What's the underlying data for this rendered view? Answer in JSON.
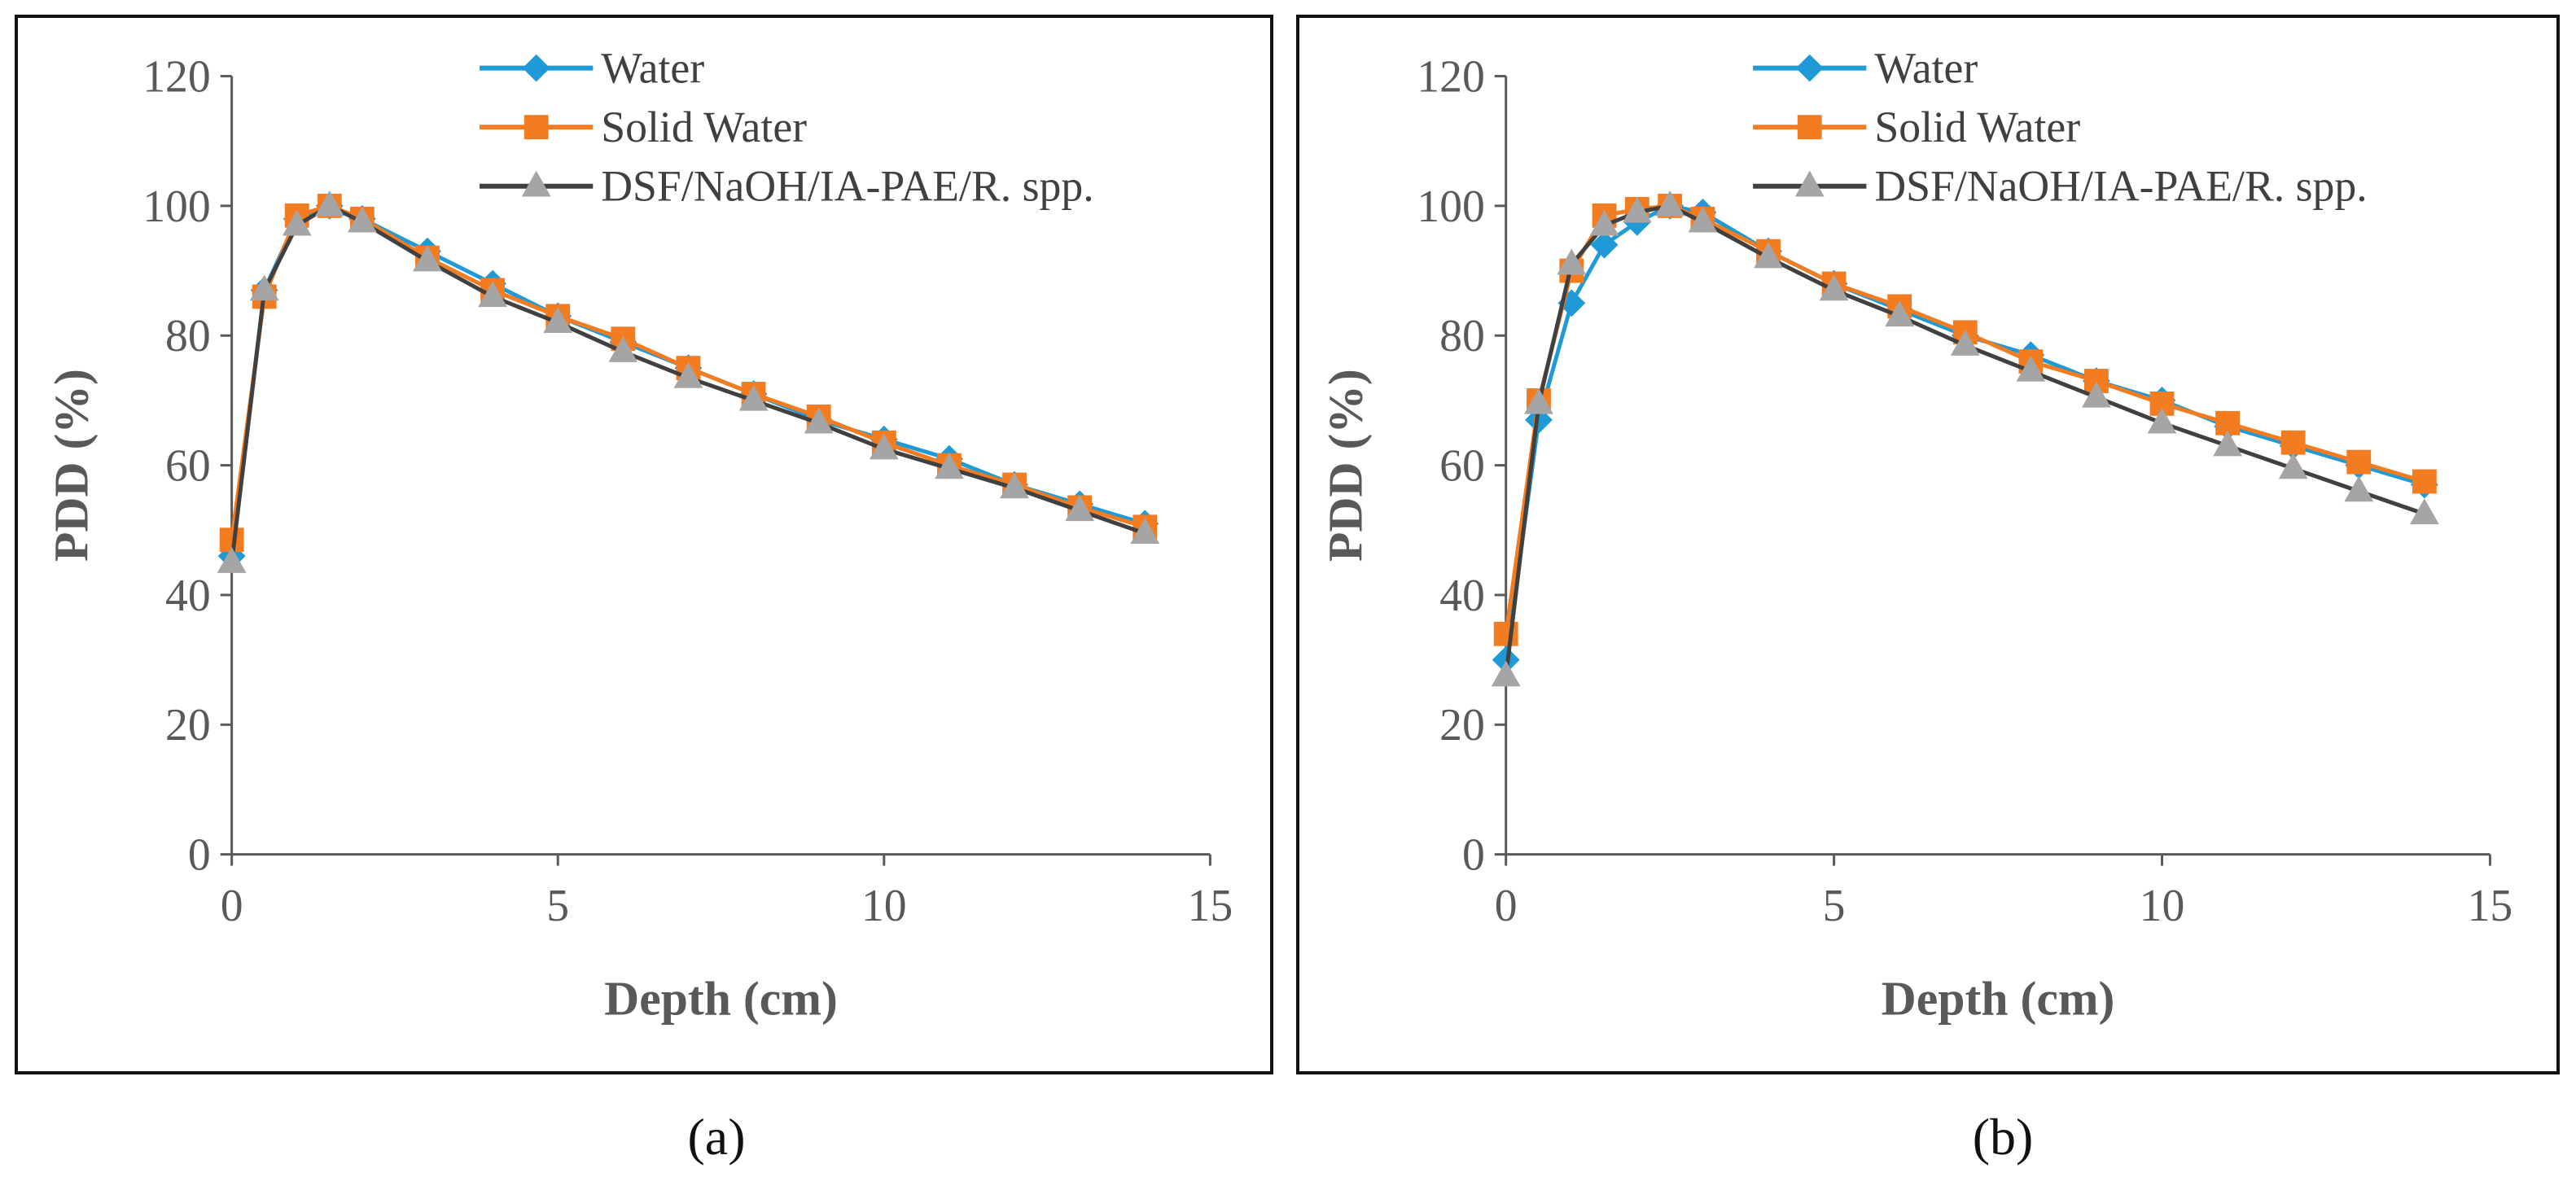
{
  "panel_labels": [
    "(a)",
    "(b)"
  ],
  "colors": {
    "water": "#1f9ad6",
    "solid_water": "#f47c20",
    "dsf": "#404040",
    "dsf_marker": "#a5a5a5",
    "axis": "#595959"
  },
  "chart_data": [
    {
      "type": "line",
      "panel": "(a)",
      "xlabel": "Depth (cm)",
      "ylabel": "PDD (%)",
      "xlim": [
        0,
        15
      ],
      "ylim": [
        0,
        120
      ],
      "xticks": [
        0,
        5,
        10,
        15
      ],
      "yticks": [
        0,
        20,
        40,
        60,
        80,
        100,
        120
      ],
      "legend_position": "top-center",
      "series": [
        {
          "name": "Water",
          "marker": "diamond",
          "x": [
            0,
            0.5,
            1,
            1.5,
            2,
            3,
            4,
            5,
            6,
            7,
            8,
            9,
            10,
            11,
            12,
            13,
            14
          ],
          "y": [
            46,
            87,
            98,
            100,
            98,
            93,
            88,
            83,
            79,
            75,
            71,
            67,
            64,
            61,
            57,
            54,
            51
          ]
        },
        {
          "name": "Solid Water",
          "marker": "square",
          "x": [
            0,
            0.5,
            1,
            1.5,
            2,
            3,
            4,
            5,
            6,
            7,
            8,
            9,
            10,
            11,
            12,
            13,
            14
          ],
          "y": [
            48.5,
            86,
            98.5,
            100,
            98,
            92,
            87,
            83,
            79.5,
            75,
            71,
            67.5,
            63.5,
            60,
            57,
            53.5,
            50.5
          ]
        },
        {
          "name": "DSF/NaOH/IA-PAE/R. spp.",
          "marker": "triangle",
          "x": [
            0,
            0.5,
            1,
            1.5,
            2,
            3,
            4,
            5,
            6,
            7,
            8,
            9,
            10,
            11,
            12,
            13,
            14
          ],
          "y": [
            45,
            87,
            97,
            100,
            97.5,
            91.5,
            86,
            82,
            77.5,
            73.5,
            70,
            66.5,
            62.5,
            59.5,
            56.5,
            53,
            49.5
          ]
        }
      ]
    },
    {
      "type": "line",
      "panel": "(b)",
      "xlabel": "Depth (cm)",
      "ylabel": "PDD (%)",
      "xlim": [
        0,
        15
      ],
      "ylim": [
        0,
        120
      ],
      "xticks": [
        0,
        5,
        10,
        15
      ],
      "yticks": [
        0,
        20,
        40,
        60,
        80,
        100,
        120
      ],
      "legend_position": "top-center",
      "series": [
        {
          "name": "Water",
          "marker": "diamond",
          "x": [
            0,
            0.5,
            1,
            1.5,
            2,
            2.5,
            3,
            4,
            5,
            6,
            7,
            8,
            9,
            10,
            11,
            12,
            13,
            14
          ],
          "y": [
            30,
            67,
            85,
            94,
            97.5,
            100,
            99,
            93,
            88,
            84,
            80,
            77,
            73,
            70,
            66,
            63,
            60,
            57
          ]
        },
        {
          "name": "Solid Water",
          "marker": "square",
          "x": [
            0,
            0.5,
            1,
            1.5,
            2,
            2.5,
            3,
            4,
            5,
            6,
            7,
            8,
            9,
            10,
            11,
            12,
            13,
            14
          ],
          "y": [
            34,
            70,
            90,
            98.5,
            99.5,
            100,
            98,
            93,
            88,
            84.5,
            80.5,
            76,
            73,
            69.5,
            66.5,
            63.5,
            60.5,
            57.5
          ]
        },
        {
          "name": "DSF/NaOH/IA-PAE/R. spp.",
          "marker": "triangle",
          "x": [
            0,
            0.5,
            1,
            1.5,
            2,
            2.5,
            3,
            4,
            5,
            6,
            7,
            8,
            9,
            10,
            11,
            12,
            13,
            14
          ],
          "y": [
            27.5,
            69.5,
            91,
            97,
            99,
            100,
            97.5,
            92,
            87,
            83,
            78.5,
            74.5,
            70.5,
            66.5,
            63,
            59.5,
            56,
            52.5
          ]
        }
      ]
    }
  ]
}
